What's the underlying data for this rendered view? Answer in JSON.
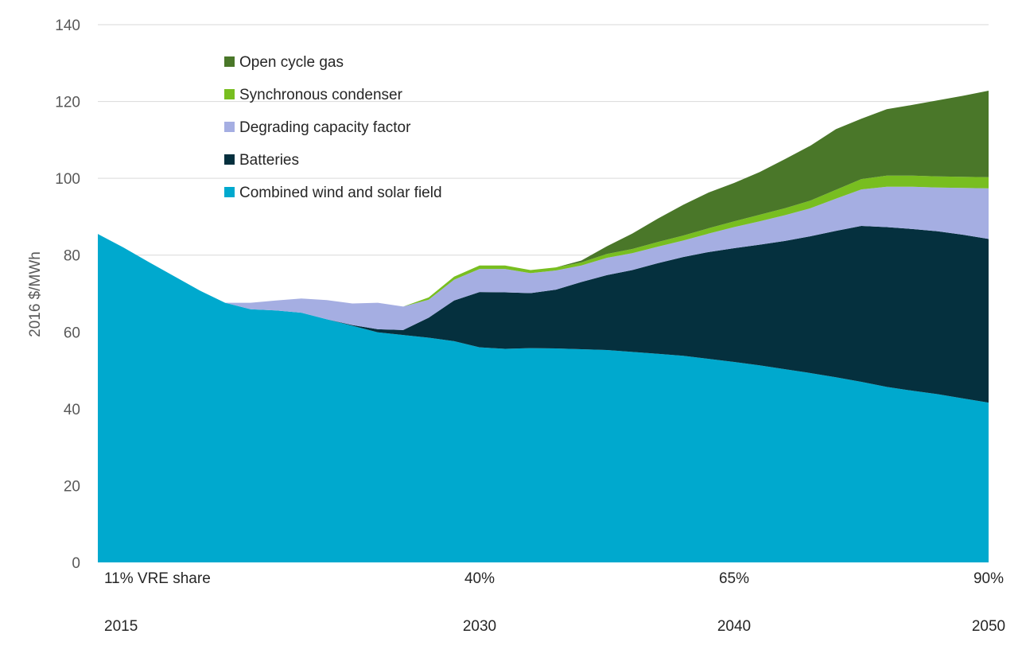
{
  "chart_data": {
    "type": "area",
    "stacked": true,
    "title": "",
    "xlabel": "",
    "ylabel": "2016 $/MWh",
    "ylim": [
      0,
      140
    ],
    "y_ticks": [
      0,
      20,
      40,
      60,
      80,
      100,
      120,
      140
    ],
    "grid": "horizontal",
    "legend_position": "top-left",
    "x": [
      2015,
      2016,
      2017,
      2018,
      2019,
      2020,
      2021,
      2022,
      2023,
      2024,
      2025,
      2026,
      2027,
      2028,
      2029,
      2030,
      2031,
      2032,
      2033,
      2034,
      2035,
      2036,
      2037,
      2038,
      2039,
      2040,
      2041,
      2042,
      2043,
      2044,
      2045,
      2046,
      2047,
      2048,
      2049,
      2050
    ],
    "x_labels": [
      {
        "x": 2015,
        "share": "11% VRE share",
        "year": "2015"
      },
      {
        "x": 2030,
        "share": "40%",
        "year": "2030"
      },
      {
        "x": 2040,
        "share": "65%",
        "year": "2040"
      },
      {
        "x": 2050,
        "share": "90%",
        "year": "2050"
      }
    ],
    "series": [
      {
        "name": "Combined wind and solar field",
        "color": "#00a9ce",
        "values": [
          85.5,
          82.0,
          78.2,
          74.5,
          70.8,
          67.6,
          65.9,
          65.6,
          65.0,
          63.3,
          61.6,
          59.9,
          59.2,
          58.5,
          57.6,
          56.0,
          55.6,
          55.8,
          55.7,
          55.5,
          55.3,
          54.8,
          54.3,
          53.8,
          53.0,
          52.2,
          51.3,
          50.3,
          49.3,
          48.2,
          47.0,
          45.7,
          44.7,
          43.8,
          42.7,
          41.6
        ]
      },
      {
        "name": "Batteries",
        "color": "#05303e",
        "values": [
          0,
          0,
          0,
          0,
          0,
          0,
          0,
          0,
          0,
          0,
          0.2,
          0.8,
          1.3,
          5.2,
          10.6,
          14.4,
          14.7,
          14.3,
          15.3,
          17.5,
          19.5,
          21.3,
          23.6,
          25.7,
          27.8,
          29.6,
          31.4,
          33.4,
          35.6,
          38.1,
          40.6,
          41.6,
          42.1,
          42.4,
          42.6,
          42.6
        ]
      },
      {
        "name": "Degrading capacity factor",
        "color": "#a5aee2",
        "values": [
          0,
          0,
          0,
          0,
          0,
          0,
          1.7,
          2.6,
          3.7,
          5.0,
          5.6,
          6.9,
          6.1,
          4.7,
          5.4,
          6.0,
          6.1,
          5.2,
          5.0,
          4.3,
          4.5,
          4.4,
          4.3,
          4.3,
          4.8,
          5.5,
          6.1,
          6.7,
          7.3,
          8.4,
          9.5,
          10.5,
          11.0,
          11.4,
          12.2,
          13.2
        ]
      },
      {
        "name": "Synchronous condenser",
        "color": "#78be20",
        "values": [
          0,
          0,
          0,
          0,
          0,
          0,
          0,
          0,
          0,
          0,
          0,
          0,
          0,
          0.6,
          0.8,
          0.9,
          0.9,
          0.8,
          0.8,
          0.8,
          1.0,
          1.1,
          1.2,
          1.3,
          1.4,
          1.5,
          1.7,
          1.8,
          2.0,
          2.3,
          2.7,
          2.9,
          2.9,
          2.9,
          2.9,
          2.9
        ]
      },
      {
        "name": "Open cycle gas",
        "color": "#4a7729",
        "values": [
          0,
          0,
          0,
          0,
          0,
          0,
          0,
          0,
          0,
          0,
          0,
          0,
          0,
          0,
          0,
          0,
          0,
          0,
          0,
          0.5,
          2.0,
          4.0,
          6.1,
          8.0,
          9.3,
          10.0,
          11.1,
          12.8,
          14.3,
          15.8,
          15.7,
          17.3,
          18.4,
          19.8,
          21.1,
          22.5
        ]
      }
    ]
  }
}
